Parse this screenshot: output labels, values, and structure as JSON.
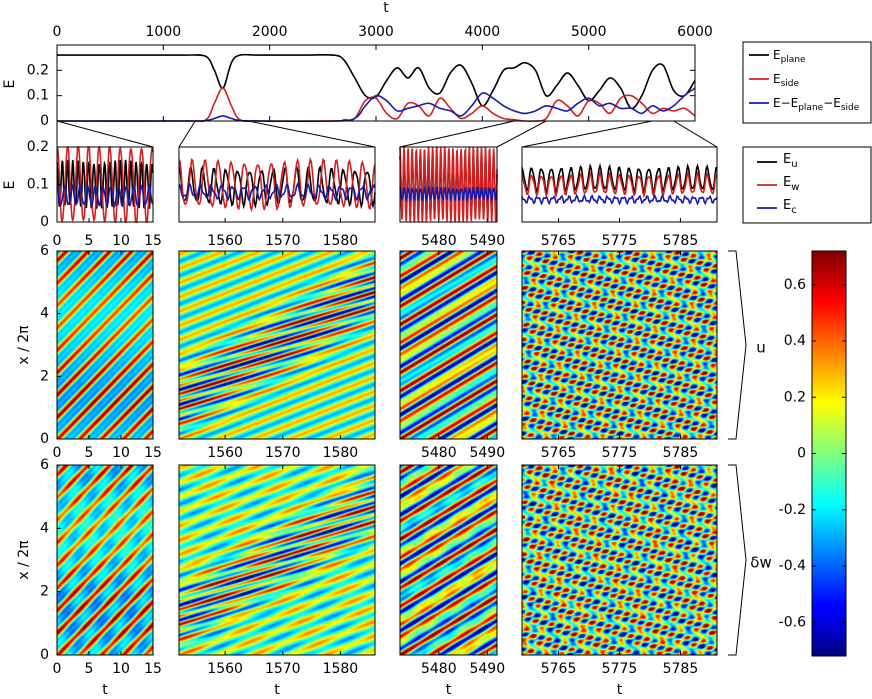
{
  "chart_data": [
    {
      "type": "line",
      "panel": "top-energy-timeseries",
      "xlabel": "t",
      "ylabel": "E",
      "xlim": [
        0,
        6000
      ],
      "ylim": [
        0,
        0.3
      ],
      "x_ticks": [
        0,
        1000,
        2000,
        3000,
        4000,
        5000,
        6000
      ],
      "y_ticks": [
        0,
        0.1,
        0.2
      ],
      "x_axis_position": "top",
      "series": [
        {
          "name": "E_plane",
          "color": "#000000",
          "x": [
            0,
            500,
            1000,
            1200,
            1400,
            1480,
            1560,
            1640,
            1720,
            1900,
            2300,
            2600,
            2700,
            2800,
            2900,
            3000,
            3100,
            3200,
            3300,
            3400,
            3500,
            3600,
            3700,
            3800,
            3900,
            4000,
            4100,
            4200,
            4300,
            4400,
            4500,
            4600,
            4700,
            4800,
            4900,
            5000,
            5100,
            5200,
            5300,
            5400,
            5500,
            5600,
            5700,
            5800,
            5900,
            6000
          ],
          "values": [
            0.26,
            0.26,
            0.26,
            0.26,
            0.255,
            0.2,
            0.13,
            0.23,
            0.26,
            0.26,
            0.26,
            0.26,
            0.24,
            0.17,
            0.1,
            0.095,
            0.16,
            0.21,
            0.17,
            0.21,
            0.13,
            0.11,
            0.19,
            0.22,
            0.15,
            0.06,
            0.12,
            0.2,
            0.21,
            0.23,
            0.2,
            0.1,
            0.14,
            0.19,
            0.14,
            0.08,
            0.12,
            0.17,
            0.13,
            0.05,
            0.1,
            0.2,
            0.22,
            0.12,
            0.1,
            0.16
          ]
        },
        {
          "name": "E_side",
          "color": "#d42020",
          "x": [
            0,
            1200,
            1400,
            1480,
            1560,
            1640,
            1720,
            1900,
            2600,
            2700,
            2800,
            2900,
            3000,
            3100,
            3200,
            3300,
            3400,
            3500,
            3600,
            3700,
            3800,
            3900,
            4000,
            4100,
            4200,
            4300,
            4400,
            4500,
            4600,
            4700,
            4800,
            4900,
            5000,
            5100,
            5200,
            5300,
            5400,
            5500,
            5600,
            5700,
            5800,
            5900,
            6000
          ],
          "values": [
            0,
            0,
            0.005,
            0.07,
            0.13,
            0.06,
            0.005,
            0,
            0,
            0.005,
            0.01,
            0.08,
            0.09,
            0.03,
            0.01,
            0.07,
            0.06,
            0.02,
            0.09,
            0.05,
            0.01,
            0.03,
            0.06,
            0.03,
            0.01,
            0.005,
            0,
            0,
            0.01,
            0.08,
            0.06,
            0.02,
            0.08,
            0.07,
            0.03,
            0.09,
            0.1,
            0.07,
            0.03,
            0.05,
            0.04,
            0.05,
            0.02
          ]
        },
        {
          "name": "E-E_plane-E_side",
          "color": "#1a1aa8",
          "x": [
            0,
            1200,
            1400,
            1480,
            1560,
            1640,
            1720,
            1900,
            2600,
            2800,
            2900,
            3000,
            3100,
            3200,
            3300,
            3400,
            3500,
            3600,
            3700,
            3800,
            3900,
            4000,
            4100,
            4200,
            4300,
            4400,
            4500,
            4600,
            4700,
            4800,
            4900,
            5000,
            5100,
            5200,
            5300,
            5400,
            5500,
            5600,
            5700,
            5800,
            5900,
            6000
          ],
          "values": [
            0,
            0,
            0.002,
            0.01,
            0.02,
            0.01,
            0.002,
            0,
            0,
            0.01,
            0.06,
            0.1,
            0.08,
            0.04,
            0.05,
            0.06,
            0.07,
            0.05,
            0.04,
            0.02,
            0.06,
            0.11,
            0.09,
            0.06,
            0.04,
            0.03,
            0.04,
            0.06,
            0.05,
            0.04,
            0.07,
            0.09,
            0.06,
            0.07,
            0.05,
            0.05,
            0.03,
            0.06,
            0.04,
            0.06,
            0.1,
            0.13
          ]
        }
      ]
    },
    {
      "type": "line",
      "panel": "zoom-energy",
      "ylabel": "E",
      "ylim": [
        0,
        0.2
      ],
      "y_ticks": [
        0,
        0.1,
        0.2
      ],
      "legend": [
        "E_u",
        "E_w",
        "E_c"
      ],
      "windows": [
        {
          "xlim": [
            0,
            15
          ],
          "x_ticks": [
            0,
            5,
            10,
            15
          ],
          "x_from_top": [
            0,
            1
          ],
          "u": [
            0.1,
            0.06,
            0.055,
            0.006
          ],
          "w": [
            0.1,
            0.1,
            0.11,
            0.006
          ],
          "c": [
            0.07,
            0.025,
            0.08,
            0.003
          ]
        },
        {
          "xlim": [
            1552,
            1586
          ],
          "x_ticks": [
            1560,
            1570,
            1580
          ],
          "x_from_top": [
            1300,
            1800
          ],
          "u": [
            0.095,
            0.045,
            0.06,
            0.008
          ],
          "w": [
            0.1,
            0.06,
            0.067,
            0.008
          ],
          "c": [
            0.08,
            0.015,
            0.055,
            0.006
          ]
        },
        {
          "xlim": [
            5472,
            5492
          ],
          "x_ticks": [
            5480,
            5490
          ],
          "x_from_top": [
            4300,
            4600
          ],
          "u": [
            0.095,
            0.075,
            0.042,
            0.006
          ],
          "w": [
            0.1,
            0.1,
            0.042,
            0.006
          ],
          "c": [
            0.075,
            0.015,
            0.042,
            0.003
          ]
        },
        {
          "xlim": [
            5759,
            5791
          ],
          "x_ticks": [
            5765,
            5775,
            5785
          ],
          "x_from_top": [
            5600,
            5800
          ],
          "u": [
            0.115,
            0.03,
            0.05,
            0.005
          ],
          "w": [
            0.1,
            0.025,
            0.05,
            0.005
          ],
          "c": [
            0.06,
            0.007,
            0.04,
            0.004
          ]
        }
      ]
    },
    {
      "type": "heatmap",
      "panel": "u-fields",
      "label": "u",
      "ylabel": "x / 2π",
      "ylim": [
        0,
        6
      ],
      "y_ticks": [
        0,
        2,
        4,
        6
      ],
      "panels_xlim": [
        [
          0,
          15
        ],
        [
          1552,
          1586
        ],
        [
          5472,
          5492
        ],
        [
          5759,
          5791
        ]
      ],
      "panels_x_ticks": [
        [
          0,
          5,
          10,
          15
        ],
        [
          1560,
          1570,
          1580
        ],
        [
          5480,
          5490
        ],
        [
          5765,
          5775,
          5785
        ]
      ]
    },
    {
      "type": "heatmap",
      "panel": "dw-fields",
      "label": "δw",
      "xlabel": "t",
      "ylabel": "x / 2π",
      "ylim": [
        0,
        6
      ],
      "y_ticks": [
        0,
        2,
        4,
        6
      ],
      "panels_xlim": [
        [
          0,
          15
        ],
        [
          1552,
          1586
        ],
        [
          5472,
          5492
        ],
        [
          5759,
          5791
        ]
      ],
      "panels_x_ticks": [
        [
          0,
          5,
          10,
          15
        ],
        [
          1560,
          1570,
          1580
        ],
        [
          5480,
          5490
        ],
        [
          5765,
          5775,
          5785
        ]
      ]
    },
    {
      "type": "colorbar",
      "colormap": "jet",
      "range": [
        -0.72,
        0.72
      ],
      "ticks": [
        -0.6,
        -0.4,
        -0.2,
        0,
        0.2,
        0.4,
        0.6
      ]
    }
  ]
}
